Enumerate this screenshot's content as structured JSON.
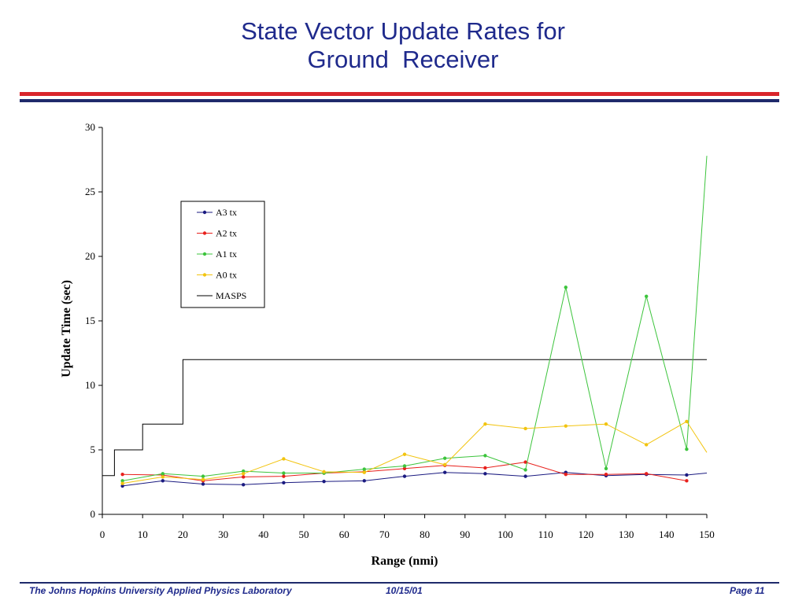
{
  "slide": {
    "title_line1": "State Vector Update Rates for",
    "title_line2": "Ground  Receiver",
    "footer_org": "The Johns Hopkins University Applied Physics Laboratory",
    "footer_date": "10/15/01",
    "footer_page": "Page 11"
  },
  "colors": {
    "title": "#1f2a8c",
    "rule_red": "#d9252b",
    "rule_blue": "#1f2a6b"
  },
  "chart_data": {
    "type": "line",
    "title": "",
    "xlabel": "Range (nmi)",
    "ylabel": "Update Time (sec)",
    "xlim": [
      0,
      150
    ],
    "ylim": [
      0,
      30
    ],
    "xticks": [
      0,
      10,
      20,
      30,
      40,
      50,
      60,
      70,
      80,
      90,
      100,
      110,
      120,
      130,
      140,
      150
    ],
    "yticks": [
      0,
      5,
      10,
      15,
      20,
      25,
      30
    ],
    "grid": false,
    "legend_position": "upper-left-inside",
    "series": [
      {
        "name": "A3 tx",
        "color": "#1a1a80",
        "markers": true,
        "x": [
          5,
          15,
          25,
          35,
          45,
          55,
          65,
          75,
          85,
          95,
          105,
          115,
          125,
          135,
          145,
          150
        ],
        "y": [
          2.2,
          2.6,
          2.35,
          2.3,
          2.45,
          2.55,
          2.6,
          2.95,
          3.25,
          3.15,
          2.95,
          3.25,
          3.0,
          3.1,
          3.05,
          3.2
        ]
      },
      {
        "name": "A2 tx",
        "color": "#e8201c",
        "markers": true,
        "x": [
          5,
          15,
          25,
          35,
          45,
          55,
          65,
          75,
          85,
          95,
          105,
          115,
          125,
          135,
          145
        ],
        "y": [
          3.1,
          3.05,
          2.6,
          2.9,
          2.95,
          3.2,
          3.3,
          3.55,
          3.8,
          3.6,
          4.05,
          3.1,
          3.1,
          3.15,
          2.6
        ]
      },
      {
        "name": "A1 tx",
        "color": "#3cc43c",
        "markers": true,
        "x": [
          5,
          15,
          25,
          35,
          45,
          55,
          65,
          75,
          85,
          95,
          105,
          115,
          125,
          135,
          145,
          150
        ],
        "y": [
          2.6,
          3.15,
          2.95,
          3.35,
          3.2,
          3.2,
          3.5,
          3.75,
          4.35,
          4.55,
          3.45,
          17.6,
          3.55,
          16.9,
          5.05,
          27.8
        ]
      },
      {
        "name": "A0 tx",
        "color": "#f2c40f",
        "markers": true,
        "x": [
          5,
          15,
          25,
          35,
          45,
          55,
          65,
          75,
          85,
          95,
          105,
          115,
          125,
          135,
          145,
          150
        ],
        "y": [
          2.4,
          2.9,
          2.7,
          3.15,
          4.3,
          3.3,
          3.25,
          4.65,
          3.85,
          7.0,
          6.65,
          6.85,
          7.0,
          5.4,
          7.2,
          4.8
        ]
      },
      {
        "name": "MASPS",
        "color": "#000000",
        "markers": false,
        "x": [
          0,
          3,
          3,
          10,
          10,
          20,
          20,
          150
        ],
        "y": [
          3,
          3,
          5,
          5,
          7,
          7,
          12,
          12
        ]
      }
    ]
  }
}
